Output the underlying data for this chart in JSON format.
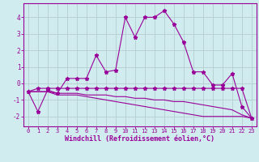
{
  "x": [
    0,
    1,
    2,
    3,
    4,
    5,
    6,
    7,
    8,
    9,
    10,
    11,
    12,
    13,
    14,
    15,
    16,
    17,
    18,
    19,
    20,
    21,
    22,
    23
  ],
  "line1": [
    -0.5,
    -1.7,
    -0.4,
    -0.6,
    0.3,
    0.3,
    0.3,
    1.7,
    0.7,
    0.8,
    4.0,
    2.8,
    4.0,
    4.0,
    4.4,
    3.6,
    2.5,
    0.7,
    0.7,
    -0.1,
    -0.1,
    0.6,
    -1.4,
    -2.1
  ],
  "line2": [
    -0.5,
    -0.3,
    -0.3,
    -0.3,
    -0.3,
    -0.3,
    -0.3,
    -0.3,
    -0.3,
    -0.3,
    -0.3,
    -0.3,
    -0.3,
    -0.3,
    -0.3,
    -0.3,
    -0.3,
    -0.3,
    -0.3,
    -0.3,
    -0.3,
    -0.3,
    -0.3,
    -2.1
  ],
  "line3": [
    -0.5,
    -0.5,
    -0.5,
    -0.6,
    -0.6,
    -0.6,
    -0.7,
    -0.7,
    -0.7,
    -0.8,
    -0.8,
    -0.9,
    -0.9,
    -1.0,
    -1.0,
    -1.1,
    -1.1,
    -1.2,
    -1.3,
    -1.4,
    -1.5,
    -1.6,
    -1.9,
    -2.1
  ],
  "line4": [
    -0.5,
    -0.5,
    -0.5,
    -0.7,
    -0.7,
    -0.7,
    -0.8,
    -0.9,
    -1.0,
    -1.1,
    -1.2,
    -1.3,
    -1.4,
    -1.5,
    -1.6,
    -1.7,
    -1.8,
    -1.9,
    -2.0,
    -2.0,
    -2.0,
    -2.0,
    -2.0,
    -2.1
  ],
  "line_color": "#990099",
  "bg_color": "#d0ecee",
  "grid_color": "#b0c8ca",
  "xlabel": "Windchill (Refroidissement éolien,°C)",
  "xlim_min": -0.5,
  "xlim_max": 23.5,
  "ylim_min": -2.6,
  "ylim_max": 4.85,
  "yticks": [
    -2,
    -1,
    0,
    1,
    2,
    3,
    4
  ],
  "xticks": [
    0,
    1,
    2,
    3,
    4,
    5,
    6,
    7,
    8,
    9,
    10,
    11,
    12,
    13,
    14,
    15,
    16,
    17,
    18,
    19,
    20,
    21,
    22,
    23
  ],
  "tick_fontsize": 5.0,
  "xlabel_fontsize": 6.0,
  "ytick_fontsize": 5.5,
  "linewidth": 0.8,
  "marker": "*",
  "markersize": 3.5
}
